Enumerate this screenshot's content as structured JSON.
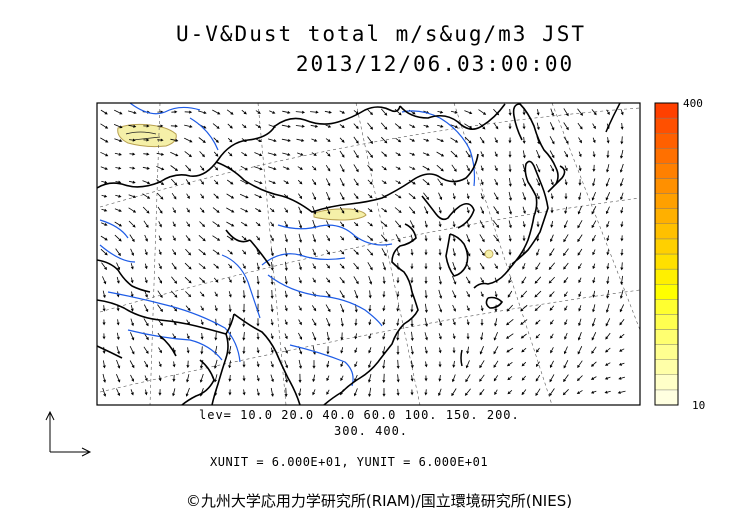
{
  "title": {
    "line1": "U-V&Dust total m/s&ug/m3 JST",
    "line2": "2013/12/06.03:00:00"
  },
  "legend_text": {
    "lev_line1": "lev= 10.0 20.0 40.0 60.0 100. 150. 200.",
    "lev_line2": "300. 400.",
    "units": "XUNIT = 6.000E+01, YUNIT = 6.000E+01"
  },
  "colorbar": {
    "max_label": "400",
    "min_label": "10",
    "colors": [
      "#ffffe0",
      "#ffffc8",
      "#ffffa8",
      "#ffff90",
      "#ffff70",
      "#ffff50",
      "#ffff30",
      "#ffff00",
      "#fff000",
      "#ffe000",
      "#ffd000",
      "#ffc000",
      "#ffb000",
      "#ffa000",
      "#ff9000",
      "#ff8000",
      "#ff7000",
      "#ff6000",
      "#ff5000",
      "#ff4000"
    ]
  },
  "colors": {
    "coastline": "#000000",
    "rivers": "#1e5ce6",
    "dust_fill": "#f5f0a8",
    "dust_outline": "#b8a050"
  },
  "credit": "©九州大学応用力学研究所(RIAM)/国立環境研究所(NIES)"
}
